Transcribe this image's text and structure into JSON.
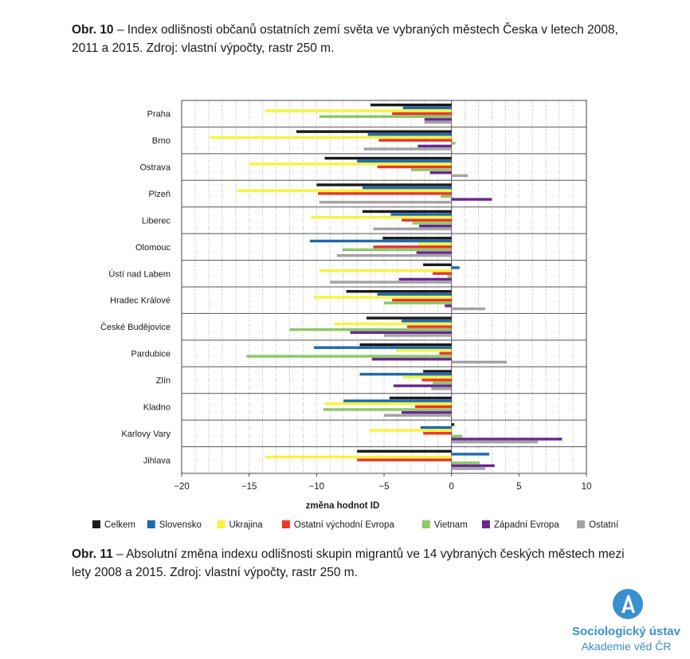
{
  "captions": {
    "top_label": "Obr. 10",
    "top_text": " – Index odlišnosti občanů ostatních zemí světa ve vybraných městech Česka v letech 2008, 2011 a 2015. Zdroj: vlastní výpočty, rastr 250 m.",
    "bottom_label": "Obr. 11",
    "bottom_text": " – Absolutní změna indexu odlišnosti skupin migrantů ve 14 vybraných českých městech mezi lety 2008 a 2015. Zdroj: vlastní výpočty, rastr 250 m."
  },
  "logo": {
    "line1": "Sociologický ústav",
    "line2": "Akademie věd ČR",
    "icon": "institute-logo-icon",
    "color": "#3a8fd0"
  },
  "chart_data": {
    "type": "bar",
    "orientation": "horizontal",
    "xlabel": "změna hodnot ID",
    "xlim": [
      -20,
      10
    ],
    "xticks": [
      -20,
      -15,
      -10,
      -5,
      0,
      5,
      10
    ],
    "grid": "vertical dotted",
    "legend_position": "bottom",
    "categories": [
      "Praha",
      "Brno",
      "Ostrava",
      "Plzeň",
      "Liberec",
      "Olomouc",
      "Ústí nad Labem",
      "Hradec Králové",
      "České Budějovice",
      "Pardubice",
      "Zlín",
      "Kladno",
      "Karlovy Vary",
      "Jihlava"
    ],
    "series": [
      {
        "name": "Celkem",
        "color": "#1a1a1a",
        "values": [
          -6.0,
          -11.5,
          -9.4,
          -10.0,
          -6.6,
          -5.1,
          -2.1,
          -7.8,
          -6.3,
          -6.8,
          -2.1,
          -4.6,
          0.2,
          -7.0
        ]
      },
      {
        "name": "Slovensko",
        "color": "#1f6ab0",
        "values": [
          -3.6,
          -6.2,
          -7.0,
          -6.6,
          -4.5,
          -10.5,
          0.6,
          -5.5,
          -3.7,
          -10.2,
          -6.8,
          -8.0,
          -2.3,
          2.8
        ]
      },
      {
        "name": "Ukrajina",
        "color": "#f7f43e",
        "values": [
          -13.8,
          -17.9,
          -15.0,
          -15.9,
          -10.4,
          -2.5,
          -9.8,
          -10.2,
          -8.7,
          -4.1,
          -3.6,
          -9.4,
          -6.1,
          -13.8
        ]
      },
      {
        "name": "Ostatní východní Evropa",
        "color": "#e8372b",
        "values": [
          -4.4,
          -5.4,
          -5.5,
          -9.9,
          -3.7,
          -5.8,
          -1.4,
          -4.4,
          -3.3,
          -0.9,
          -2.2,
          -2.7,
          -2.1,
          -7.0
        ]
      },
      {
        "name": "Vietnam",
        "color": "#8cc867",
        "values": [
          -9.8,
          0.3,
          -3.0,
          -0.8,
          -2.9,
          -8.1,
          -0.3,
          -5.0,
          -12.0,
          -15.2,
          -1.4,
          -9.5,
          0.8,
          2.1
        ]
      },
      {
        "name": "Západní Evropa",
        "color": "#6a2691",
        "values": [
          -2.0,
          -2.5,
          -1.6,
          3.0,
          -2.4,
          -2.6,
          -3.9,
          -0.5,
          -7.5,
          -5.9,
          -4.3,
          -3.7,
          8.2,
          3.2
        ]
      },
      {
        "name": "Ostatní",
        "color": "#a3a3a3",
        "values": [
          -2.0,
          -6.5,
          1.2,
          -9.8,
          -5.8,
          -8.5,
          -9.0,
          2.5,
          -5.0,
          4.1,
          -1.5,
          -5.0,
          6.4,
          2.5
        ]
      }
    ]
  }
}
